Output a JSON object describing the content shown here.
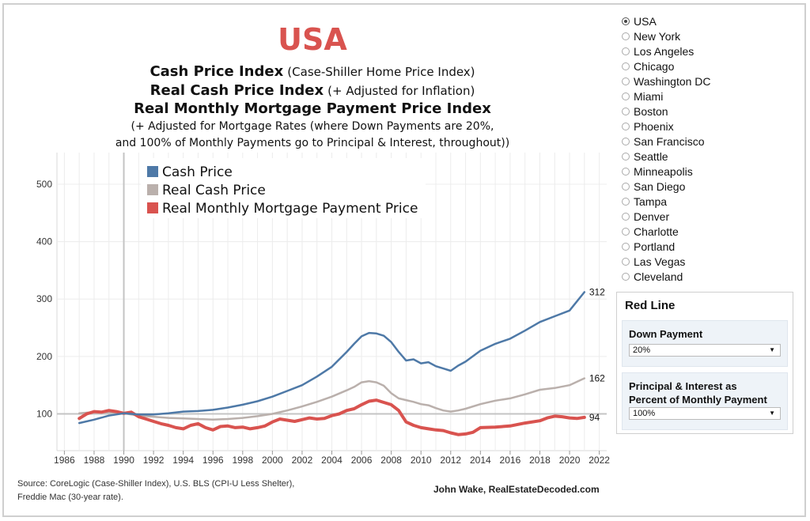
{
  "header": {
    "title": "USA",
    "line1_bold": "Cash Price Index",
    "line1_rest": "(Case-Shiller Home Price Index)",
    "line2_bold": "Real Cash Price Index",
    "line2_rest": "(+ Adjusted for Inflation)",
    "line3_bold": "Real Monthly Mortgage Payment Price Index",
    "line4": "(+ Adjusted for Mortgage Rates (where Down Payments are 20%,",
    "line5": "and 100% of Monthly Payments go to Principal & Interest, throughout))"
  },
  "colors": {
    "cash": "#4e79a7",
    "real": "#bab0ac",
    "mortgage": "#d9534f",
    "title": "#d9534f"
  },
  "chart_data": {
    "type": "line",
    "xlim": [
      1985.5,
      2022.5
    ],
    "ylim": [
      36,
      555
    ],
    "x_ticks": [
      1986,
      1988,
      1990,
      1992,
      1994,
      1996,
      1998,
      2000,
      2002,
      2004,
      2006,
      2008,
      2010,
      2012,
      2014,
      2016,
      2018,
      2020,
      2022
    ],
    "y_ticks": [
      100,
      200,
      300,
      400,
      500
    ],
    "reference_line": {
      "y": 100
    },
    "reference_vline": {
      "x": 1990
    },
    "legend_position": "top-left",
    "series": [
      {
        "name": "Cash Price",
        "color": "#4e79a7",
        "width": 2.5,
        "x": [
          1987,
          1988,
          1989,
          1990,
          1991,
          1992,
          1993,
          1994,
          1995,
          1996,
          1997,
          1998,
          1999,
          2000,
          2001,
          2002,
          2003,
          2004,
          2005,
          2005.5,
          2006,
          2006.5,
          2007,
          2007.5,
          2008,
          2008.5,
          2009,
          2009.5,
          2010,
          2010.5,
          2011,
          2011.5,
          2012,
          2012.5,
          2013,
          2014,
          2015,
          2016,
          2017,
          2018,
          2019,
          2020,
          2021
        ],
        "y": [
          84,
          90,
          97,
          101,
          99,
          99,
          101,
          104,
          105,
          107,
          111,
          116,
          122,
          130,
          140,
          150,
          165,
          182,
          208,
          222,
          235,
          241,
          240,
          236,
          225,
          208,
          193,
          195,
          188,
          190,
          183,
          179,
          175,
          184,
          191,
          210,
          222,
          231,
          245,
          260,
          270,
          280,
          312
        ]
      },
      {
        "name": "Real Cash Price",
        "color": "#bab0ac",
        "width": 2.5,
        "x": [
          1987,
          1988,
          1989,
          1990,
          1991,
          1992,
          1993,
          1994,
          1995,
          1996,
          1997,
          1998,
          1999,
          2000,
          2001,
          2002,
          2003,
          2004,
          2005,
          2005.5,
          2006,
          2006.5,
          2007,
          2007.5,
          2008,
          2008.5,
          2009,
          2009.5,
          2010,
          2010.5,
          2011,
          2011.5,
          2012,
          2012.5,
          2013,
          2014,
          2015,
          2016,
          2017,
          2018,
          2019,
          2020,
          2021
        ],
        "y": [
          101,
          103,
          103,
          101,
          97,
          95,
          93,
          92,
          91,
          90,
          91,
          93,
          96,
          100,
          106,
          113,
          121,
          130,
          141,
          147,
          155,
          157,
          155,
          149,
          136,
          127,
          124,
          121,
          117,
          115,
          110,
          106,
          104,
          106,
          109,
          117,
          123,
          127,
          134,
          142,
          145,
          150,
          162
        ]
      },
      {
        "name": "Real Monthly Mortgage Payment Price",
        "color": "#d9534f",
        "width": 4,
        "x": [
          1987,
          1987.5,
          1988,
          1988.5,
          1989,
          1989.5,
          1990,
          1990.5,
          1991,
          1991.5,
          1992,
          1992.5,
          1993,
          1993.5,
          1994,
          1994.5,
          1995,
          1995.5,
          1996,
          1996.5,
          1997,
          1997.5,
          1998,
          1998.5,
          1999,
          1999.5,
          2000,
          2000.5,
          2001,
          2001.5,
          2002,
          2002.5,
          2003,
          2003.5,
          2004,
          2004.5,
          2005,
          2005.5,
          2006,
          2006.5,
          2007,
          2007.5,
          2008,
          2008.5,
          2009,
          2009.5,
          2010,
          2010.5,
          2011,
          2011.5,
          2012,
          2012.5,
          2013,
          2013.5,
          2014,
          2015,
          2016,
          2017,
          2018,
          2018.5,
          2019,
          2019.5,
          2020,
          2020.5,
          2021
        ],
        "y": [
          92,
          100,
          104,
          103,
          106,
          104,
          101,
          103,
          95,
          91,
          87,
          83,
          80,
          76,
          74,
          80,
          83,
          76,
          72,
          78,
          79,
          76,
          77,
          74,
          76,
          79,
          86,
          91,
          89,
          87,
          90,
          93,
          91,
          92,
          97,
          100,
          106,
          109,
          116,
          122,
          124,
          120,
          116,
          106,
          86,
          80,
          76,
          74,
          72,
          71,
          67,
          64,
          65,
          68,
          76,
          77,
          79,
          84,
          88,
          93,
          96,
          95,
          93,
          92,
          94
        ]
      }
    ],
    "end_labels": [
      "312",
      "162",
      "94"
    ]
  },
  "footer": {
    "source_line1": "Source: CoreLogic (Case-Shiller Index), U.S. BLS (CPI-U Less Shelter),",
    "source_line2": "Freddie Mac (30-year rate).",
    "credit": "John Wake, RealEstateDecoded.com"
  },
  "cities": [
    "USA",
    "New York",
    "Los Angeles",
    "Chicago",
    "Washington DC",
    "Miami",
    "Boston",
    "Phoenix",
    "San Francisco",
    "Seattle",
    "Minneapolis",
    "San Diego",
    "Tampa",
    "Denver",
    "Charlotte",
    "Portland",
    "Las Vegas",
    "Cleveland"
  ],
  "selected_city": "USA",
  "panel": {
    "title": "Red Line",
    "down_payment_label": "Down Payment",
    "down_payment_value": "20%",
    "pi_label_line1": "Principal & Interest as",
    "pi_label_line2": "Percent of Monthly Payment",
    "pi_value": "100%"
  }
}
